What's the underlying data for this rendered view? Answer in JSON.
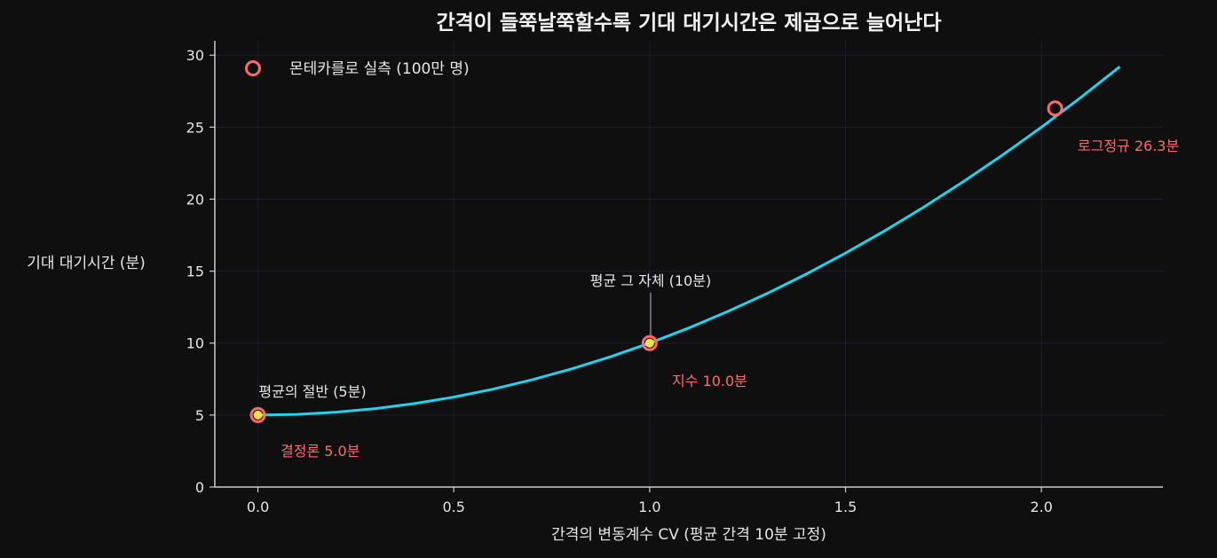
{
  "chart_data": {
    "type": "line",
    "title": "간격이 들쭉날쭉할수록 기대 대기시간은 제곱으로 늘어난다",
    "xlabel": "간격의 변동계수 CV  (평균 간격 10분 고정)",
    "ylabel": "기대 대기시간 (분)",
    "xlim": [
      -0.11,
      2.31
    ],
    "ylim": [
      0,
      31
    ],
    "xticks": [
      0.0,
      0.5,
      1.0,
      1.5,
      2.0
    ],
    "xtick_labels": [
      "0.0",
      "0.5",
      "1.0",
      "1.5",
      "2.0"
    ],
    "yticks": [
      0,
      5,
      10,
      15,
      20,
      25,
      30
    ],
    "ytick_labels": [
      "0",
      "5",
      "10",
      "15",
      "20",
      "25",
      "30"
    ],
    "grid": true,
    "line": {
      "formula": "5 × (1 + CV²)",
      "x": [
        0.0,
        0.1,
        0.2,
        0.3,
        0.4,
        0.5,
        0.6,
        0.7,
        0.8,
        0.9,
        1.0,
        1.1,
        1.2,
        1.3,
        1.4,
        1.5,
        1.6,
        1.7,
        1.8,
        1.9,
        2.0,
        2.1,
        2.2
      ],
      "y": [
        5.0,
        5.05,
        5.2,
        5.45,
        5.8,
        6.25,
        6.8,
        7.45,
        8.2,
        9.05,
        10.0,
        11.05,
        12.2,
        13.45,
        14.8,
        16.25,
        17.8,
        19.45,
        21.2,
        23.05,
        25.0,
        27.05,
        29.2
      ],
      "color": "#22d3ee"
    },
    "series": [
      {
        "name": "몬테카를로 실측 (100만 명)",
        "x": [
          0.0,
          1.0,
          2.035
        ],
        "y": [
          5.0,
          10.0,
          26.3
        ],
        "color": "#ff6b6b"
      }
    ],
    "highlight_points": [
      {
        "x": 0.0,
        "y": 5.0,
        "color": "#fde047"
      },
      {
        "x": 1.0,
        "y": 10.0,
        "color": "#fde047"
      }
    ],
    "point_labels": [
      "결정론 5.0분",
      "지수 10.0분",
      "로그정규 26.3분"
    ],
    "annotations": [
      "평균의 절반 (5분)",
      "평균 그 자체 (10분)"
    ],
    "legend_position": "top-left"
  },
  "colors": {
    "background": "#0f0f0f",
    "curve": "#22d3ee",
    "marker": "#ff6b6b",
    "highlight": "#fde047",
    "grid": "#1e1e2c",
    "axis": "#cccccc"
  }
}
